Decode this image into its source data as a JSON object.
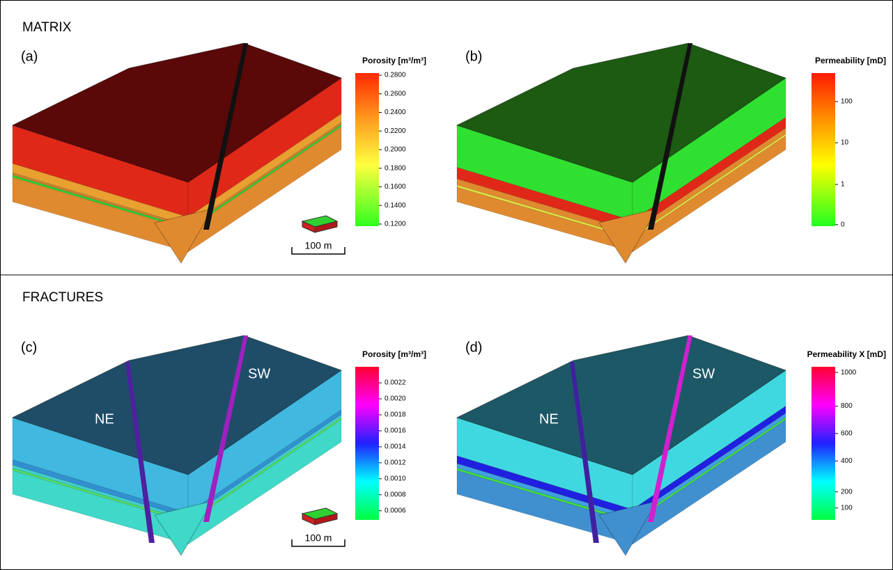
{
  "sections": [
    {
      "title": "MATRIX",
      "panels": [
        {
          "label": "(a)",
          "colorbar": {
            "title": "Porosity [m³/m³]",
            "ticks": [
              "0.2800",
              "0.2600",
              "0.2400",
              "0.2200",
              "0.2000",
              "0.1800",
              "0.1600",
              "0.1400",
              "0.1200"
            ]
          },
          "scale_bar": "100 m"
        },
        {
          "label": "(b)",
          "colorbar": {
            "title": "Permeability [mD]",
            "ticks": [
              "100",
              "10",
              "1",
              "0"
            ]
          }
        }
      ]
    },
    {
      "title": "FRACTURES",
      "panels": [
        {
          "label": "(c)",
          "annotations": [
            "NE",
            "SW"
          ],
          "colorbar": {
            "title": "Porosity [m³/m³]",
            "ticks": [
              "0.0022",
              "0.0020",
              "0.0018",
              "0.0016",
              "0.0014",
              "0.0012",
              "0.0010",
              "0.0008",
              "0.0006"
            ]
          },
          "scale_bar": "100 m"
        },
        {
          "label": "(d)",
          "annotations": [
            "NE",
            "SW"
          ],
          "colorbar": {
            "title": "Permeability X [mD]",
            "ticks": [
              "1000",
              "800",
              "600",
              "400",
              "200",
              "100"
            ]
          }
        }
      ]
    }
  ]
}
